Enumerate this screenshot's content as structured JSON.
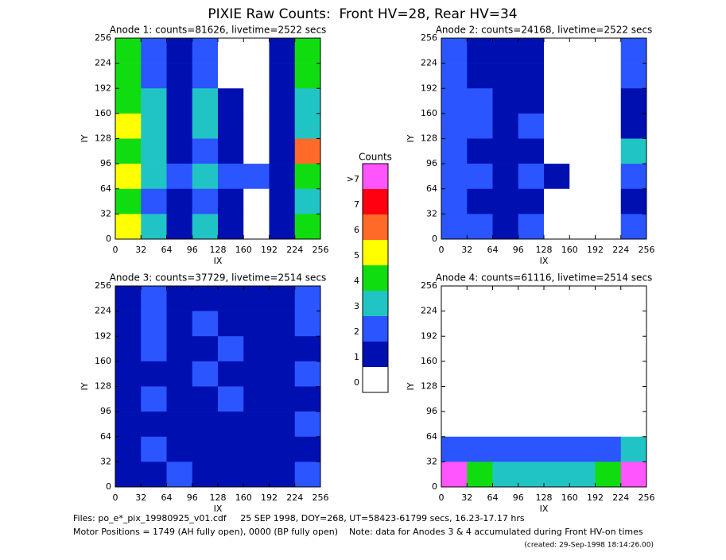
{
  "title": "PIXIE Raw Counts:  Front HV=28, Rear HV=34",
  "colorbar": {
    "title": "Counts",
    "levels": [
      {
        "label": "0",
        "color": "#ffffff"
      },
      {
        "label": "1",
        "color": "#0010b0"
      },
      {
        "label": "2",
        "color": "#2a55ff"
      },
      {
        "label": "3",
        "color": "#20c4c4"
      },
      {
        "label": "4",
        "color": "#10dd10"
      },
      {
        "label": "5",
        "color": "#ffff00"
      },
      {
        "label": "6",
        "color": "#ff6a28"
      },
      {
        "label": "7",
        "color": "#ff0010"
      },
      {
        "label": ">7",
        "color": "#ff55ff"
      }
    ]
  },
  "chart_data": [
    {
      "type": "heatmap",
      "title": "Anode 1: counts=81626, livetime=2522 secs",
      "xlabel": "IX",
      "ylabel": "IY",
      "xlim": [
        0,
        256
      ],
      "ylim": [
        0,
        256
      ],
      "xticks": [
        0,
        32,
        64,
        96,
        128,
        160,
        192,
        224,
        256
      ],
      "yticks": [
        0,
        32,
        64,
        96,
        128,
        160,
        192,
        224,
        256
      ],
      "values": [
        [
          4,
          2,
          1,
          2,
          0,
          0,
          1,
          4
        ],
        [
          4,
          2,
          1,
          2,
          0,
          0,
          1,
          4
        ],
        [
          4,
          3,
          1,
          3,
          1,
          0,
          1,
          3
        ],
        [
          5,
          3,
          1,
          3,
          1,
          0,
          1,
          3
        ],
        [
          4,
          3,
          1,
          2,
          1,
          0,
          1,
          6
        ],
        [
          5,
          3,
          2,
          3,
          2,
          2,
          1,
          4
        ],
        [
          4,
          2,
          1,
          2,
          1,
          0,
          1,
          3
        ],
        [
          5,
          3,
          1,
          3,
          1,
          0,
          1,
          4
        ]
      ]
    },
    {
      "type": "heatmap",
      "title": "Anode 2: counts=24168, livetime=2522 secs",
      "xlabel": "IX",
      "ylabel": "IY",
      "xlim": [
        0,
        256
      ],
      "ylim": [
        0,
        256
      ],
      "xticks": [
        0,
        32,
        64,
        96,
        128,
        160,
        192,
        224,
        256
      ],
      "yticks": [
        0,
        32,
        64,
        96,
        128,
        160,
        192,
        224,
        256
      ],
      "values": [
        [
          2,
          1,
          1,
          1,
          0,
          0,
          0,
          2
        ],
        [
          2,
          1,
          1,
          1,
          0,
          0,
          0,
          2
        ],
        [
          2,
          2,
          1,
          1,
          0,
          0,
          0,
          1
        ],
        [
          2,
          2,
          1,
          2,
          0,
          0,
          0,
          1
        ],
        [
          2,
          1,
          1,
          1,
          0,
          0,
          0,
          3
        ],
        [
          2,
          2,
          1,
          2,
          1,
          0,
          0,
          2
        ],
        [
          2,
          1,
          1,
          1,
          0,
          0,
          0,
          1
        ],
        [
          2,
          2,
          1,
          2,
          0,
          0,
          0,
          2
        ]
      ]
    },
    {
      "type": "heatmap",
      "title": "Anode 3: counts=37729, livetime=2514 secs",
      "xlabel": "IX",
      "ylabel": "IY",
      "xlim": [
        0,
        256
      ],
      "ylim": [
        0,
        256
      ],
      "xticks": [
        0,
        32,
        64,
        96,
        128,
        160,
        192,
        224,
        256
      ],
      "yticks": [
        0,
        32,
        64,
        96,
        128,
        160,
        192,
        224,
        256
      ],
      "values": [
        [
          1,
          2,
          1,
          1,
          1,
          1,
          1,
          2
        ],
        [
          1,
          2,
          1,
          2,
          1,
          1,
          1,
          2
        ],
        [
          1,
          2,
          1,
          1,
          2,
          1,
          1,
          1
        ],
        [
          1,
          1,
          1,
          2,
          1,
          1,
          1,
          2
        ],
        [
          1,
          2,
          1,
          1,
          2,
          1,
          1,
          1
        ],
        [
          1,
          1,
          1,
          1,
          1,
          1,
          1,
          2
        ],
        [
          1,
          2,
          1,
          1,
          1,
          1,
          1,
          1
        ],
        [
          1,
          1,
          2,
          1,
          1,
          1,
          1,
          2
        ]
      ]
    },
    {
      "type": "heatmap",
      "title": "Anode 4: counts=61116, livetime=2514 secs",
      "xlabel": "IX",
      "ylabel": "IY",
      "xlim": [
        0,
        256
      ],
      "ylim": [
        0,
        256
      ],
      "xticks": [
        0,
        32,
        64,
        96,
        128,
        160,
        192,
        224,
        256
      ],
      "yticks": [
        0,
        32,
        64,
        96,
        128,
        160,
        192,
        224,
        256
      ],
      "values": [
        [
          0,
          0,
          0,
          0,
          0,
          0,
          0,
          0
        ],
        [
          0,
          0,
          0,
          0,
          0,
          0,
          0,
          0
        ],
        [
          0,
          0,
          0,
          0,
          0,
          0,
          0,
          0
        ],
        [
          0,
          0,
          0,
          0,
          0,
          0,
          0,
          0
        ],
        [
          0,
          0,
          0,
          0,
          0,
          0,
          0,
          0
        ],
        [
          0,
          0,
          0,
          0,
          0,
          0,
          0,
          0
        ],
        [
          2,
          2,
          2,
          2,
          2,
          2,
          2,
          3
        ],
        [
          8,
          4,
          3,
          3,
          3,
          3,
          4,
          8
        ]
      ]
    }
  ],
  "footer": [
    "Files: po_e*_pix_19980925_v01.cdf     25 SEP 1998, DOY=268, UT=58423-61799 secs, 16.23-17.17 hrs",
    "Motor Positions = 1749 (AH fully open), 0000 (BP fully open)    Note: data for Anodes 3 & 4 accumulated during Front HV-on times",
    "(created: 29-Sep-1998 18:14:26.00)"
  ]
}
